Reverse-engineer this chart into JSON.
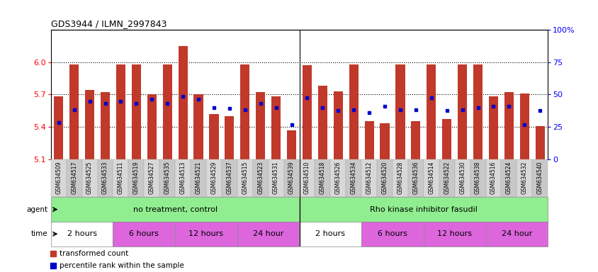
{
  "title": "GDS3944 / ILMN_2997843",
  "samples": [
    "GSM634509",
    "GSM634517",
    "GSM634525",
    "GSM634533",
    "GSM634511",
    "GSM634519",
    "GSM634527",
    "GSM634535",
    "GSM634513",
    "GSM634521",
    "GSM634529",
    "GSM634537",
    "GSM634515",
    "GSM634523",
    "GSM634531",
    "GSM634539",
    "GSM634510",
    "GSM634518",
    "GSM634526",
    "GSM634534",
    "GSM634512",
    "GSM634520",
    "GSM634528",
    "GSM634536",
    "GSM634514",
    "GSM634522",
    "GSM634530",
    "GSM634538",
    "GSM634516",
    "GSM634524",
    "GSM634532",
    "GSM634540"
  ],
  "red_values": [
    5.68,
    5.98,
    5.74,
    5.72,
    5.98,
    5.98,
    5.7,
    5.98,
    6.15,
    5.7,
    5.52,
    5.5,
    5.98,
    5.72,
    5.68,
    5.37,
    5.97,
    5.78,
    5.73,
    5.98,
    5.45,
    5.43,
    5.98,
    5.45,
    5.98,
    5.47,
    5.98,
    5.98,
    5.68,
    5.72,
    5.71,
    5.41
  ],
  "blue_values": [
    5.44,
    5.56,
    5.64,
    5.62,
    5.64,
    5.62,
    5.66,
    5.62,
    5.68,
    5.66,
    5.58,
    5.57,
    5.56,
    5.62,
    5.58,
    5.42,
    5.67,
    5.58,
    5.55,
    5.56,
    5.53,
    5.59,
    5.56,
    5.56,
    5.67,
    5.55,
    5.56,
    5.58,
    5.59,
    5.59,
    5.42,
    5.55
  ],
  "ymin": 5.1,
  "ymax": 6.3,
  "yticks_left": [
    5.1,
    5.4,
    5.7,
    6.0
  ],
  "right_ytick_pcts": [
    0,
    25,
    50,
    75,
    100
  ],
  "right_ylabels": [
    "0",
    "25",
    "50",
    "75",
    "100%"
  ],
  "bar_color": "#C0392B",
  "blue_color": "#0000CC",
  "background_color": "#ffffff",
  "agent_groups": [
    {
      "label": "no treatment, control",
      "start": 0,
      "end": 16
    },
    {
      "label": "Rho kinase inhibitor fasudil",
      "start": 16,
      "end": 32
    }
  ],
  "time_groups": [
    {
      "label": "2 hours",
      "start": 0,
      "end": 4,
      "bg": "#ffffff"
    },
    {
      "label": "6 hours",
      "start": 4,
      "end": 8,
      "bg": "#DD66DD"
    },
    {
      "label": "12 hours",
      "start": 8,
      "end": 12,
      "bg": "#DD66DD"
    },
    {
      "label": "24 hour",
      "start": 12,
      "end": 16,
      "bg": "#DD66DD"
    },
    {
      "label": "2 hours",
      "start": 16,
      "end": 20,
      "bg": "#ffffff"
    },
    {
      "label": "6 hours",
      "start": 20,
      "end": 24,
      "bg": "#DD66DD"
    },
    {
      "label": "12 hours",
      "start": 24,
      "end": 28,
      "bg": "#DD66DD"
    },
    {
      "label": "24 hour",
      "start": 28,
      "end": 32,
      "bg": "#DD66DD"
    }
  ],
  "tick_bg_even": "#d8d8d8",
  "tick_bg_odd": "#c8c8c8",
  "agent_bg": "#90EE90",
  "agent_divider": 16
}
